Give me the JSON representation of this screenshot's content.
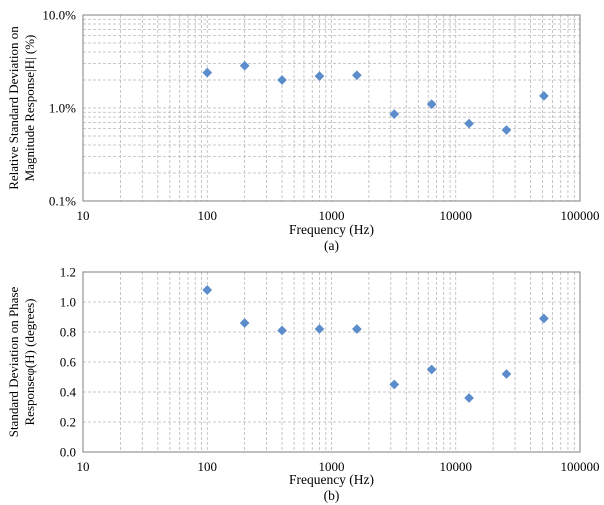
{
  "chart_data": [
    {
      "type": "scatter",
      "subcaption": "(a)",
      "xlabel": "Frequency (Hz)",
      "ylabel_lines": [
        "Relative Standard Deviation on",
        "Magnitude Response|H| (%)"
      ],
      "xscale": "log",
      "yscale": "log",
      "xlim": [
        10,
        100000
      ],
      "ylim": [
        0.1,
        10
      ],
      "grid": "major and minor, dashed",
      "xticks": [
        10,
        100,
        1000,
        10000,
        100000
      ],
      "xtick_labels": [
        "10",
        "100",
        "1000",
        "10000",
        "100000"
      ],
      "yticks": [
        0.1,
        1,
        10
      ],
      "ytick_labels": [
        "0.1%",
        "1.0%",
        "10.0%"
      ],
      "marker": "diamond",
      "marker_color": "#5b8ccc",
      "x": [
        100,
        200,
        400,
        800,
        1600,
        3200,
        6400,
        12800,
        25600,
        51200
      ],
      "y": [
        2.4,
        2.85,
        2.0,
        2.2,
        2.25,
        0.86,
        1.1,
        0.68,
        0.58,
        1.35
      ]
    },
    {
      "type": "scatter",
      "subcaption": "(b)",
      "xlabel": "Frequency (Hz)",
      "ylabel_lines": [
        "Standard Deviation on Phase",
        "Responseφ(H) (degrees)"
      ],
      "xscale": "log",
      "yscale": "linear",
      "xlim": [
        10,
        100000
      ],
      "ylim": [
        0,
        1.2
      ],
      "grid": "major and minor x, major y, dashed",
      "xticks": [
        10,
        100,
        1000,
        10000,
        100000
      ],
      "xtick_labels": [
        "10",
        "100",
        "1000",
        "10000",
        "100000"
      ],
      "yticks": [
        0,
        0.2,
        0.4,
        0.6,
        0.8,
        1.0,
        1.2
      ],
      "ytick_labels": [
        "0.0",
        "0.2",
        "0.4",
        "0.6",
        "0.8",
        "1.0",
        "1.2"
      ],
      "marker": "diamond",
      "marker_color": "#5b8ccc",
      "x": [
        100,
        200,
        400,
        800,
        1600,
        3200,
        6400,
        12800,
        25600,
        51200
      ],
      "y": [
        1.08,
        0.86,
        0.81,
        0.82,
        0.82,
        0.45,
        0.55,
        0.36,
        0.52,
        0.89
      ]
    }
  ]
}
